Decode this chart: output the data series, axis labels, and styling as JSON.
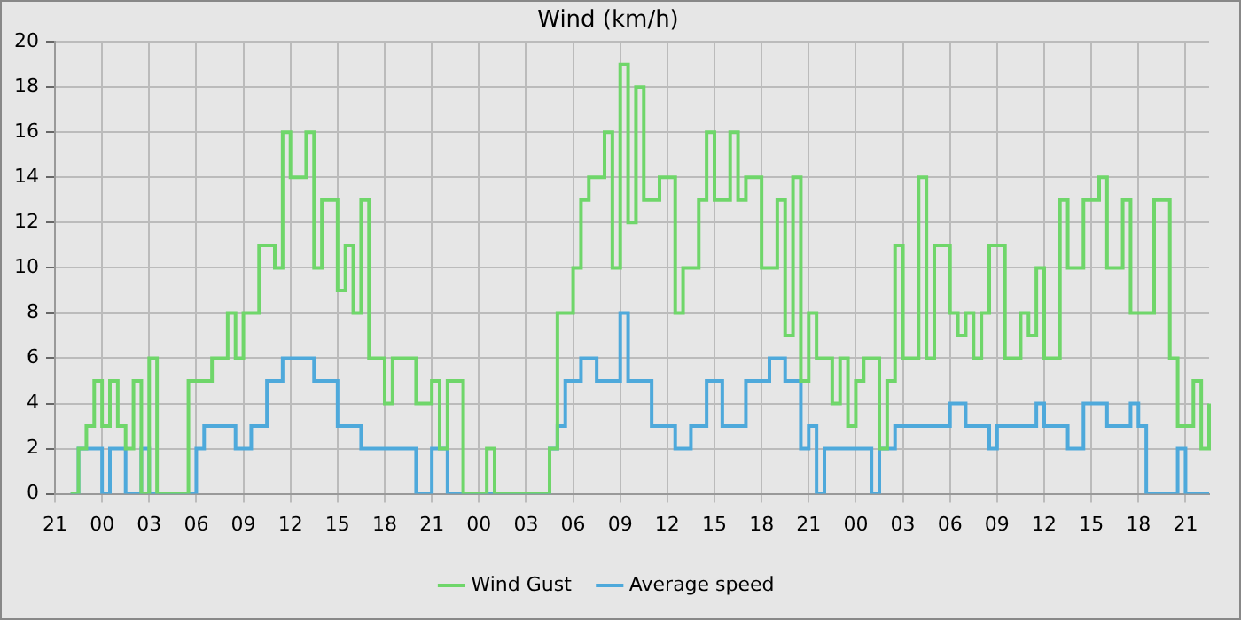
{
  "chart_data": {
    "type": "step",
    "title": "Wind (km/h)",
    "categories": [
      "21",
      null,
      null,
      null,
      null,
      null,
      "00",
      null,
      null,
      null,
      null,
      null,
      "03",
      null,
      null,
      null,
      null,
      null,
      "06",
      null,
      null,
      null,
      null,
      null,
      "09",
      null,
      null,
      null,
      null,
      null,
      "12",
      null,
      null,
      null,
      null,
      null,
      "15",
      null,
      null,
      null,
      null,
      null,
      "18",
      null,
      null,
      null,
      null,
      null,
      "21",
      null,
      null,
      null,
      null,
      null,
      "00",
      null,
      null,
      null,
      null,
      null,
      "03",
      null,
      null,
      null,
      null,
      null,
      "06",
      null,
      null,
      null,
      null,
      null,
      "09",
      null,
      null,
      null,
      null,
      null,
      "12",
      null,
      null,
      null,
      null,
      null,
      "15",
      null,
      null,
      null,
      null,
      null,
      "18",
      null,
      null,
      null,
      null,
      null,
      "21",
      null,
      null,
      null,
      null,
      null,
      "00",
      null,
      null,
      null,
      null,
      null,
      "03",
      null,
      null,
      null,
      null,
      null,
      "06",
      null,
      null,
      null,
      null,
      null,
      "09",
      null,
      null,
      null,
      null,
      null,
      "12",
      null,
      null,
      null,
      null,
      null,
      "15",
      null,
      null,
      null,
      null,
      null,
      "18",
      null,
      null,
      null,
      null,
      null,
      "21",
      null,
      null,
      null
    ],
    "series": [
      {
        "name": "Wind Gust",
        "color": "#6fd66a",
        "values": [
          null,
          null,
          0,
          2,
          3,
          5,
          3,
          5,
          3,
          2,
          5,
          0,
          6,
          0,
          0,
          0,
          0,
          5,
          5,
          5,
          6,
          6,
          8,
          6,
          8,
          8,
          11,
          11,
          10,
          16,
          14,
          14,
          16,
          10,
          13,
          13,
          9,
          11,
          8,
          13,
          6,
          6,
          4,
          6,
          6,
          6,
          4,
          4,
          5,
          2,
          5,
          5,
          0,
          0,
          0,
          2,
          0,
          0,
          0,
          0,
          0,
          0,
          0,
          2,
          8,
          8,
          10,
          13,
          14,
          14,
          16,
          10,
          19,
          12,
          18,
          13,
          13,
          14,
          14,
          8,
          10,
          10,
          13,
          16,
          13,
          13,
          16,
          13,
          14,
          14,
          10,
          10,
          13,
          7,
          14,
          5,
          8,
          6,
          6,
          4,
          6,
          3,
          5,
          6,
          6,
          2,
          5,
          11,
          6,
          6,
          14,
          6,
          11,
          11,
          8,
          7,
          8,
          6,
          8,
          11,
          11,
          6,
          6,
          8,
          7,
          10,
          6,
          6,
          13,
          10,
          10,
          13,
          13,
          14,
          10,
          10,
          13,
          8,
          8,
          8,
          13,
          13,
          6,
          3,
          3,
          5,
          2,
          4
        ]
      },
      {
        "name": "Average speed",
        "color": "#4ea9db",
        "values": [
          null,
          null,
          0,
          2,
          2,
          2,
          0,
          2,
          2,
          0,
          0,
          2,
          0,
          0,
          0,
          0,
          0,
          0,
          2,
          3,
          3,
          3,
          3,
          2,
          2,
          3,
          3,
          5,
          5,
          6,
          6,
          6,
          6,
          5,
          5,
          5,
          3,
          3,
          3,
          2,
          2,
          2,
          2,
          2,
          2,
          2,
          0,
          0,
          2,
          2,
          0,
          0,
          0,
          0,
          0,
          0,
          0,
          0,
          0,
          0,
          0,
          0,
          0,
          2,
          3,
          5,
          5,
          6,
          6,
          5,
          5,
          5,
          8,
          5,
          5,
          5,
          3,
          3,
          3,
          2,
          2,
          3,
          3,
          5,
          5,
          3,
          3,
          3,
          5,
          5,
          5,
          6,
          6,
          5,
          5,
          2,
          3,
          0,
          2,
          2,
          2,
          2,
          2,
          2,
          0,
          2,
          2,
          3,
          3,
          3,
          3,
          3,
          3,
          3,
          4,
          4,
          3,
          3,
          3,
          2,
          3,
          3,
          3,
          3,
          3,
          4,
          3,
          3,
          3,
          2,
          2,
          4,
          4,
          4,
          3,
          3,
          3,
          4,
          3,
          0,
          0,
          0,
          0,
          2,
          0,
          0,
          0,
          0
        ]
      }
    ],
    "ylim": [
      0,
      20
    ],
    "yticks": [
      0,
      2,
      4,
      6,
      8,
      10,
      12,
      14,
      16,
      18,
      20
    ],
    "grid": true,
    "legend": "bottom"
  }
}
